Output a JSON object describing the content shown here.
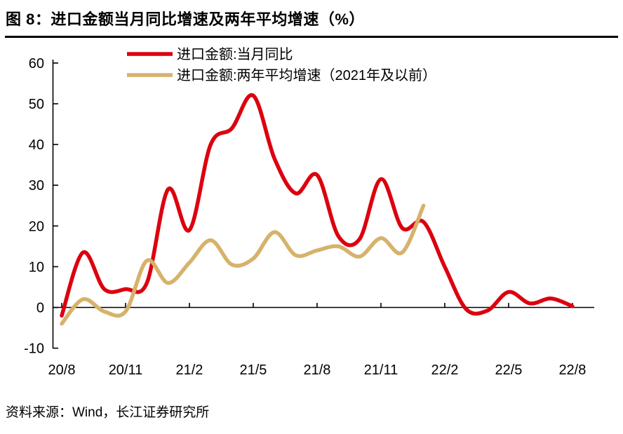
{
  "header": {
    "title": "图 8：进口金额当月同比增速及两年平均增速（%）"
  },
  "footer": {
    "source": "资料来源：Wind，长江证券研究所"
  },
  "chart_data": {
    "type": "line",
    "title": "进口金额当月同比增速及两年平均增速（%）",
    "x": [
      "20/8",
      "20/9",
      "20/10",
      "20/11",
      "20/12",
      "21/1",
      "21/2",
      "21/3",
      "21/4",
      "21/5",
      "21/6",
      "21/7",
      "21/8",
      "21/9",
      "21/10",
      "21/11",
      "21/12",
      "22/1",
      "22/2",
      "22/3",
      "22/4",
      "22/5",
      "22/6",
      "22/7",
      "22/8"
    ],
    "series": [
      {
        "name": "进口金额:当月同比",
        "color": "#DC000F",
        "values": [
          -2,
          13.5,
          4.5,
          4.5,
          6,
          29,
          19,
          40,
          44,
          52,
          36.5,
          28,
          32.5,
          17.5,
          16.8,
          31.5,
          19.5,
          21,
          10,
          -0.4,
          -0.8,
          3.8,
          1,
          2.2,
          0.3
        ]
      },
      {
        "name": "进口金额:两年平均增速（2021年及以前）",
        "color": "#D6B26B",
        "values": [
          -4,
          2,
          -1,
          -1,
          11.5,
          6,
          11,
          16.5,
          10.5,
          12,
          18.5,
          12.8,
          14,
          15,
          12.5,
          17,
          13.5,
          25
        ]
      }
    ],
    "y_ticks": [
      60,
      50,
      40,
      30,
      20,
      10,
      0,
      -10
    ],
    "x_tick_labels": [
      "20/8",
      "20/11",
      "21/2",
      "21/5",
      "21/8",
      "21/11",
      "22/2",
      "22/5",
      "22/8"
    ],
    "ylim": [
      -10,
      60
    ],
    "grid": "off",
    "legend_position": "top-left-inside",
    "axis_color": "#000000",
    "text_color": "#000000"
  }
}
